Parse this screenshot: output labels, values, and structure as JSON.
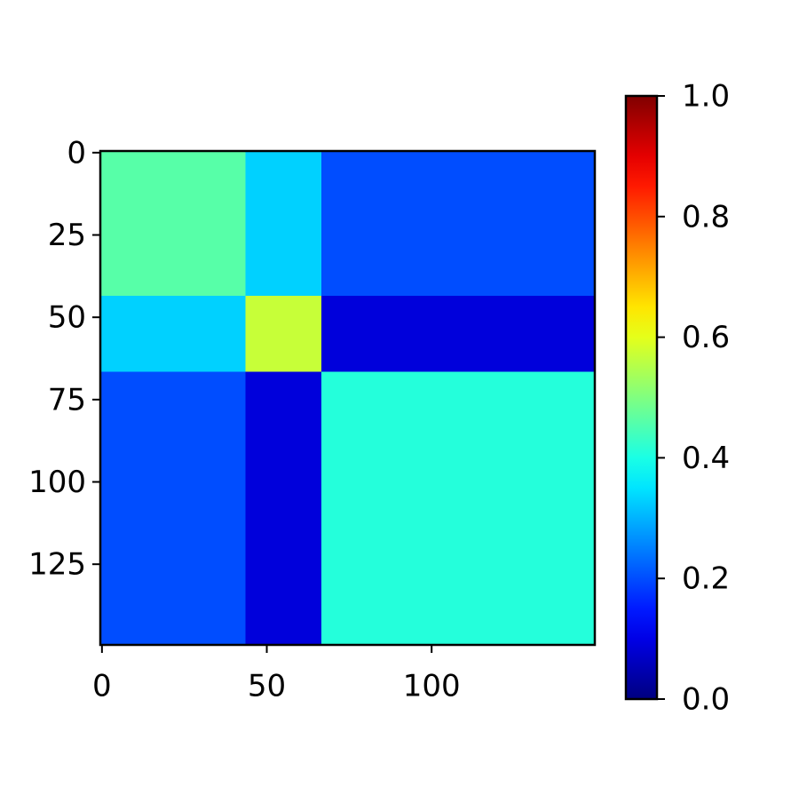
{
  "chart_data": {
    "type": "heatmap",
    "colormap": "jet",
    "x_edges": [
      -0.5,
      43.5,
      66.5,
      149.5
    ],
    "y_edges": [
      -0.5,
      43.5,
      66.5,
      149.5
    ],
    "values": [
      [
        0.46,
        0.33,
        0.2
      ],
      [
        0.33,
        0.57,
        0.09
      ],
      [
        0.2,
        0.09,
        0.41
      ]
    ],
    "xlim": [
      -0.5,
      149.5
    ],
    "ylim": [
      149.5,
      -0.5
    ],
    "xticks": [
      0,
      50,
      100
    ],
    "yticks": [
      0,
      25,
      50,
      75,
      100,
      125
    ],
    "clim": [
      0,
      1
    ],
    "cticks": [
      {
        "value": 0,
        "label": "0.0"
      },
      0.2,
      0.4,
      0.6,
      0.8,
      {
        "value": 1,
        "label": "1.0"
      }
    ]
  }
}
